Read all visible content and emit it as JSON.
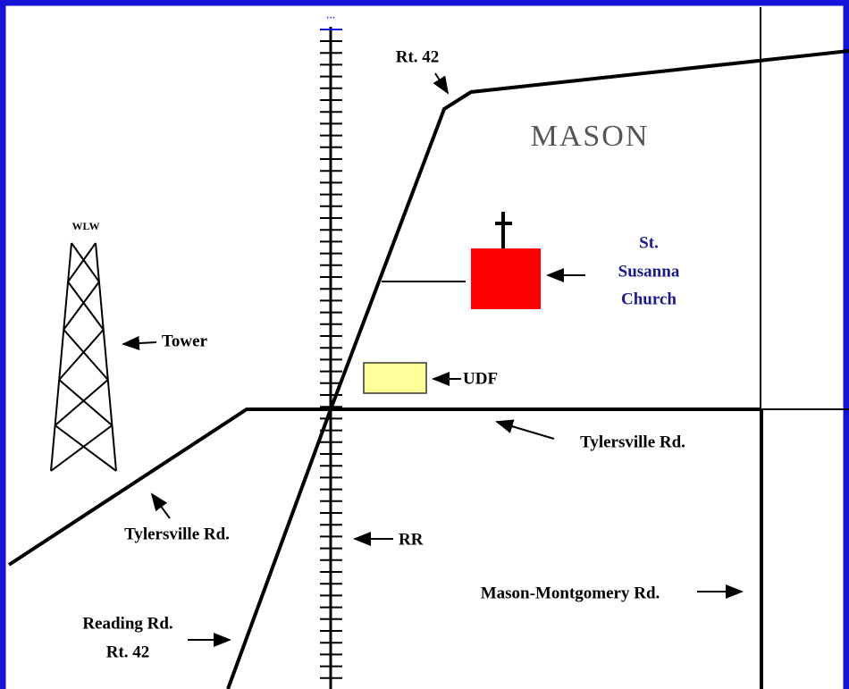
{
  "map": {
    "labels": {
      "rt42_top": "Rt. 42",
      "town": "MASON",
      "tower_name": "WLW",
      "tower": "Tower",
      "church": [
        "St.",
        "Susanna",
        "Church"
      ],
      "store": "UDF",
      "tylersville_east": "Tylersville Rd.",
      "tylersville_west": "Tylersville Rd.",
      "railroad": "RR",
      "mason_montgomery": "Mason-Montgomery Rd.",
      "reading": [
        "Reading Rd.",
        "Rt. 42"
      ]
    }
  }
}
